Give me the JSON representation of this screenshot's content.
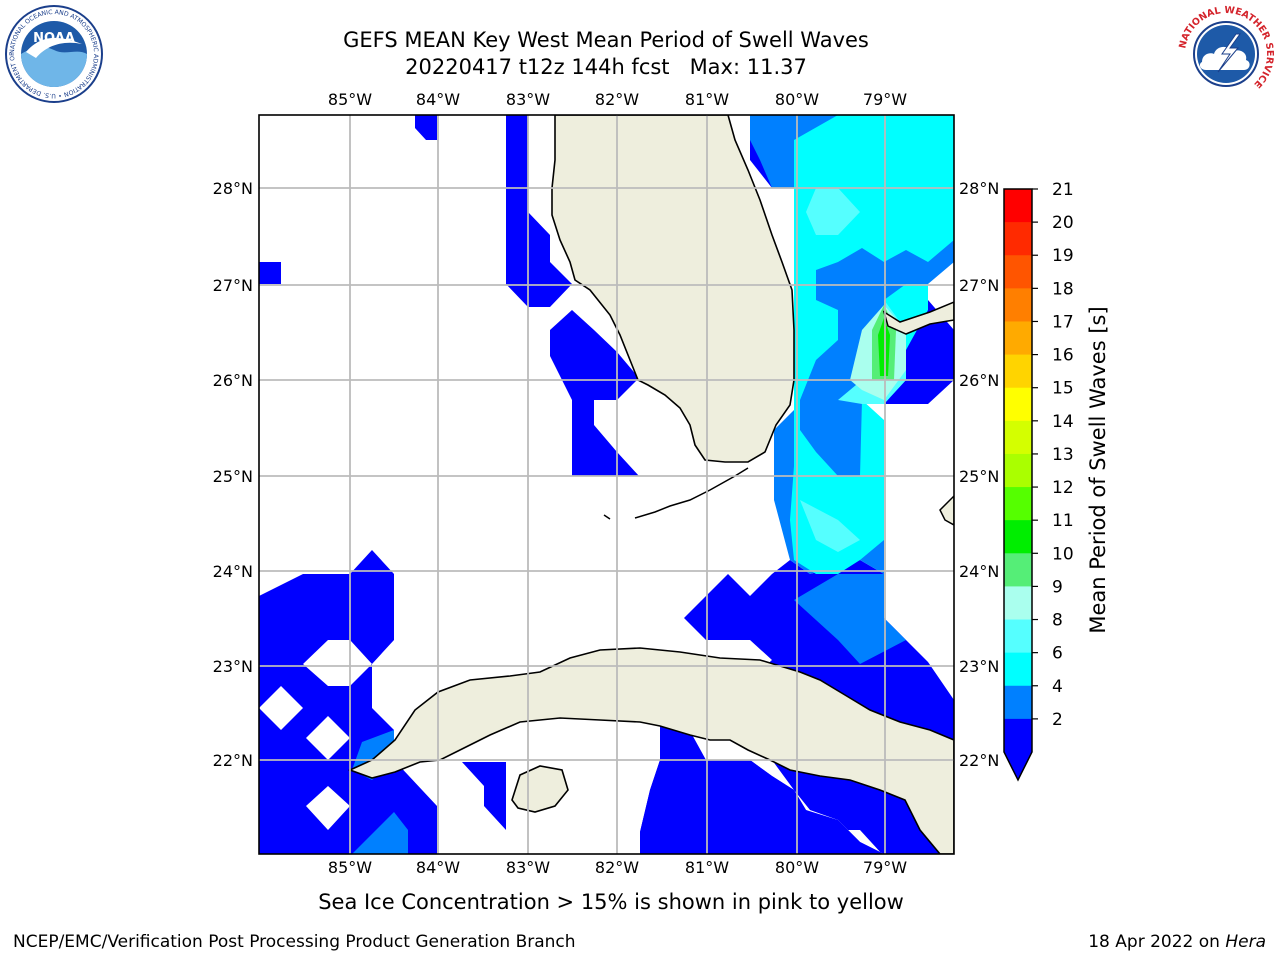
{
  "header": {
    "title_line1": "GEFS MEAN Key West Mean Period of Swell Waves",
    "title_line2": "20220417 t12z 144h fcst   Max: 11.37"
  },
  "map": {
    "lon_labels": [
      "85°W",
      "84°W",
      "83°W",
      "82°W",
      "81°W",
      "80°W",
      "79°W"
    ],
    "lat_labels": [
      "28°N",
      "27°N",
      "26°N",
      "25°N",
      "24°N",
      "23°N",
      "22°N"
    ],
    "land_color": "#eeeedd",
    "grid_color": "#bbbbbb"
  },
  "colorbar": {
    "label": "Mean Period of Swell Waves [s]",
    "ticks": [
      "21",
      "20",
      "19",
      "18",
      "17",
      "16",
      "15",
      "14",
      "13",
      "12",
      "11",
      "10",
      "9",
      "8",
      "6",
      "4",
      "2"
    ],
    "colors": [
      "#ff0000",
      "#ff2a00",
      "#ff5500",
      "#ff7f00",
      "#ffaa00",
      "#ffd400",
      "#ffff00",
      "#d4ff00",
      "#aaff00",
      "#55ff00",
      "#00ee00",
      "#55ee77",
      "#aaffee",
      "#55ffff",
      "#00ffff",
      "#0080ff",
      "#0000ff"
    ]
  },
  "logos": {
    "noaa_text": "NOAA",
    "noaa_ring": "NATIONAL OCEANIC AND ATMOSPHERIC ADMINISTRATION • U.S. DEPARTMENT OF COMMERCE",
    "nws_ring": "NATIONAL WEATHER SERVICE"
  },
  "footer": {
    "note": "Sea Ice Concentration > 15% is shown in pink to yellow",
    "left": "NCEP/EMC/Verification Post Processing Product Generation Branch",
    "date": "18 Apr 2022 on ",
    "machine": "Hera"
  }
}
